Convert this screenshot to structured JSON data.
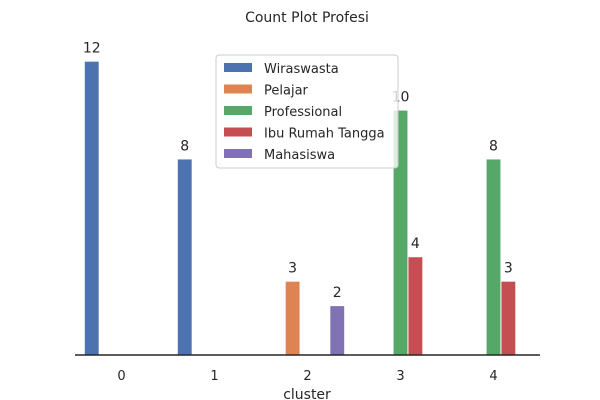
{
  "chart_data": {
    "type": "bar",
    "title": "Count Plot Profesi",
    "xlabel": "cluster",
    "ylabel": "",
    "categories": [
      "0",
      "1",
      "2",
      "3",
      "4"
    ],
    "series": [
      {
        "name": "Wiraswasta",
        "color": "#4c72b0",
        "values": [
          12,
          8,
          0,
          0,
          0
        ]
      },
      {
        "name": "Pelajar",
        "color": "#dd8452",
        "values": [
          0,
          0,
          3,
          0,
          0
        ]
      },
      {
        "name": "Professional",
        "color": "#55a868",
        "values": [
          0,
          0,
          0,
          10,
          8
        ]
      },
      {
        "name": "Ibu Rumah Tangga",
        "color": "#c44e52",
        "values": [
          0,
          0,
          0,
          4,
          3
        ]
      },
      {
        "name": "Mahasiswa",
        "color": "#8172b3",
        "values": [
          0,
          0,
          2,
          0,
          0
        ]
      }
    ],
    "ylim": [
      0,
      12.6
    ],
    "grid": false,
    "legend_position": "top-center"
  }
}
